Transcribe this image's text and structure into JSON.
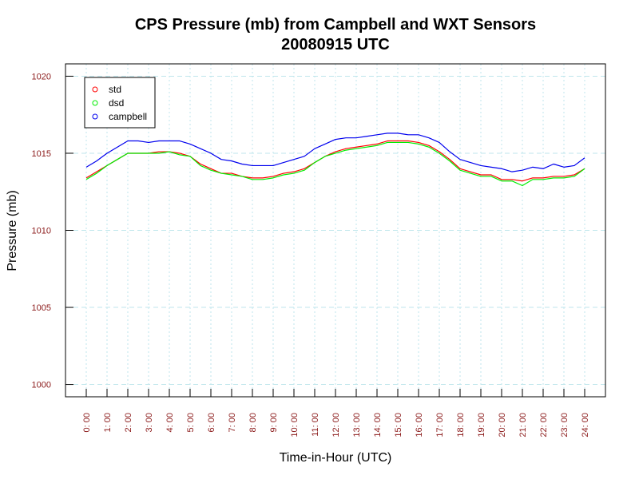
{
  "colors": {
    "tick_label": "#8b1a1a",
    "grid": "#bfe6ec",
    "std": "#ff0000",
    "dsd": "#00ee00",
    "campbell": "#0000ee",
    "frame": "#000000"
  },
  "chart_data": {
    "type": "line",
    "title": "CPS Pressure (mb) from Campbell and WXT Sensors",
    "subtitle": "20080915  UTC",
    "xlabel": "Time-in-Hour (UTC)",
    "ylabel": "Pressure (mb)",
    "xlim": [
      -1,
      25
    ],
    "ylim": [
      999.2,
      1020.8
    ],
    "x_ticks": [
      {
        "value": 0,
        "label": "0: 00"
      },
      {
        "value": 1,
        "label": "1: 00"
      },
      {
        "value": 2,
        "label": "2: 00"
      },
      {
        "value": 3,
        "label": "3: 00"
      },
      {
        "value": 4,
        "label": "4: 00"
      },
      {
        "value": 5,
        "label": "5: 00"
      },
      {
        "value": 6,
        "label": "6: 00"
      },
      {
        "value": 7,
        "label": "7: 00"
      },
      {
        "value": 8,
        "label": "8: 00"
      },
      {
        "value": 9,
        "label": "9: 00"
      },
      {
        "value": 10,
        "label": "10: 00"
      },
      {
        "value": 11,
        "label": "11: 00"
      },
      {
        "value": 12,
        "label": "12: 00"
      },
      {
        "value": 13,
        "label": "13: 00"
      },
      {
        "value": 14,
        "label": "14: 00"
      },
      {
        "value": 15,
        "label": "15: 00"
      },
      {
        "value": 16,
        "label": "16: 00"
      },
      {
        "value": 17,
        "label": "17: 00"
      },
      {
        "value": 18,
        "label": "18: 00"
      },
      {
        "value": 19,
        "label": "19: 00"
      },
      {
        "value": 20,
        "label": "20: 00"
      },
      {
        "value": 21,
        "label": "21: 00"
      },
      {
        "value": 22,
        "label": "22: 00"
      },
      {
        "value": 23,
        "label": "23: 00"
      },
      {
        "value": 24,
        "label": "24: 00"
      }
    ],
    "y_ticks": [
      {
        "value": 1000,
        "label": "1000"
      },
      {
        "value": 1005,
        "label": "1005"
      },
      {
        "value": 1010,
        "label": "1010"
      },
      {
        "value": 1015,
        "label": "1015"
      },
      {
        "value": 1020,
        "label": "1020"
      }
    ],
    "grid": true,
    "legend": {
      "position": "top-left"
    },
    "x": [
      0,
      0.5,
      1,
      1.5,
      2,
      2.5,
      3,
      3.5,
      4,
      4.5,
      5,
      5.5,
      6,
      6.5,
      7,
      7.5,
      8,
      8.5,
      9,
      9.5,
      10,
      10.5,
      11,
      11.5,
      12,
      12.5,
      13,
      13.5,
      14,
      14.5,
      15,
      15.5,
      16,
      16.5,
      17,
      17.5,
      18,
      18.5,
      19,
      19.5,
      20,
      20.5,
      21,
      21.5,
      22,
      22.5,
      23,
      23.5,
      24
    ],
    "series": [
      {
        "name": "std",
        "values": [
          1013.4,
          1013.8,
          1014.2,
          1014.6,
          1015.0,
          1015.0,
          1015.0,
          1015.1,
          1015.1,
          1015.0,
          1014.8,
          1014.3,
          1014.0,
          1013.7,
          1013.7,
          1013.5,
          1013.4,
          1013.4,
          1013.5,
          1013.7,
          1013.8,
          1014.0,
          1014.4,
          1014.8,
          1015.1,
          1015.3,
          1015.4,
          1015.5,
          1015.6,
          1015.8,
          1015.8,
          1015.8,
          1015.7,
          1015.5,
          1015.1,
          1014.6,
          1014.0,
          1013.8,
          1013.6,
          1013.6,
          1013.3,
          1013.3,
          1013.2,
          1013.4,
          1013.4,
          1013.5,
          1013.5,
          1013.6,
          1014.0
        ]
      },
      {
        "name": "dsd",
        "values": [
          1013.3,
          1013.7,
          1014.2,
          1014.6,
          1015.0,
          1015.0,
          1015.0,
          1015.0,
          1015.1,
          1014.9,
          1014.8,
          1014.2,
          1013.9,
          1013.7,
          1013.6,
          1013.5,
          1013.3,
          1013.3,
          1013.4,
          1013.6,
          1013.7,
          1013.9,
          1014.4,
          1014.8,
          1015.0,
          1015.2,
          1015.3,
          1015.4,
          1015.5,
          1015.7,
          1015.7,
          1015.7,
          1015.6,
          1015.4,
          1015.0,
          1014.5,
          1013.9,
          1013.7,
          1013.5,
          1013.5,
          1013.2,
          1013.2,
          1012.9,
          1013.3,
          1013.3,
          1013.4,
          1013.4,
          1013.5,
          1014.0
        ]
      },
      {
        "name": "campbell",
        "values": [
          1014.1,
          1014.5,
          1015.0,
          1015.4,
          1015.8,
          1015.8,
          1015.7,
          1015.8,
          1015.8,
          1015.8,
          1015.6,
          1015.3,
          1015.0,
          1014.6,
          1014.5,
          1014.3,
          1014.2,
          1014.2,
          1014.2,
          1014.4,
          1014.6,
          1014.8,
          1015.3,
          1015.6,
          1015.9,
          1016.0,
          1016.0,
          1016.1,
          1016.2,
          1016.3,
          1016.3,
          1016.2,
          1016.2,
          1016.0,
          1015.7,
          1015.1,
          1014.6,
          1014.4,
          1014.2,
          1014.1,
          1014.0,
          1013.8,
          1013.9,
          1014.1,
          1014.0,
          1014.3,
          1014.1,
          1014.2,
          1014.7
        ]
      }
    ]
  }
}
